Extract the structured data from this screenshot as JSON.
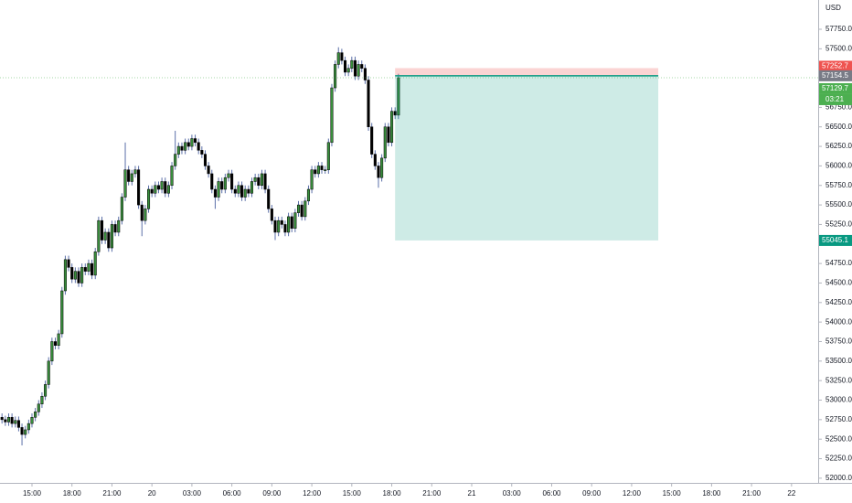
{
  "chart_data": {
    "type": "candlestick",
    "currency": "USD",
    "x": [
      -11.25,
      -11,
      -10.75,
      -10.5,
      -10.25,
      -10,
      -9.75,
      -9.5,
      -9.25,
      -9,
      -8.75,
      -8.5,
      -8.25,
      -8,
      -7.75,
      -7.5,
      -7.25,
      -7,
      -6.75,
      -6.5,
      -6.25,
      -6,
      -5.75,
      -5.5,
      -5.25,
      -5,
      -4.75,
      -4.5,
      -4.25,
      -4,
      -3.75,
      -3.5,
      -3.25,
      -3,
      -2.75,
      -2.5,
      -2.25,
      -2,
      -1.75,
      -1.5,
      -1.25,
      -1,
      -0.75,
      -0.5,
      -0.25,
      0,
      0.25,
      0.5,
      0.75,
      1,
      1.25,
      1.5,
      1.75,
      2,
      2.25,
      2.5,
      2.75,
      3,
      3.25,
      3.5,
      3.75,
      4,
      4.25,
      4.5,
      4.75,
      5,
      5.25,
      5.5,
      5.75,
      6,
      6.25,
      6.5,
      6.75,
      7,
      7.25,
      7.5,
      7.75,
      8,
      8.25,
      8.5,
      8.75,
      9,
      9.25,
      9.5,
      9.75,
      10,
      10.25,
      10.5,
      10.75,
      11,
      11.25,
      11.5,
      11.75,
      12,
      12.25,
      12.5,
      12.75,
      13,
      13.25,
      13.5,
      13.75,
      14,
      14.25,
      14.5,
      14.75,
      15,
      15.25,
      15.5,
      15.75,
      16,
      16.25,
      16.5,
      16.75,
      17,
      17.25,
      17.5,
      17.75,
      18,
      18.25,
      18.5
    ],
    "open": [
      52780,
      52750,
      52720,
      52780,
      52700,
      52740,
      52650,
      52560,
      52620,
      52700,
      52780,
      52850,
      52950,
      53050,
      53200,
      53500,
      53750,
      53700,
      53850,
      54400,
      54800,
      54700,
      54550,
      54650,
      54500,
      54700,
      54650,
      54750,
      54600,
      54900,
      55300,
      55050,
      55150,
      54950,
      55250,
      55150,
      55300,
      55600,
      55950,
      55800,
      55900,
      55950,
      55500,
      55300,
      55450,
      55700,
      55650,
      55750,
      55700,
      55800,
      55650,
      55750,
      56000,
      56150,
      56250,
      56200,
      56300,
      56250,
      56350,
      56300,
      56200,
      56150,
      56000,
      55900,
      55700,
      55600,
      55800,
      55700,
      55850,
      55900,
      55700,
      55650,
      55750,
      55600,
      55700,
      55650,
      55800,
      55850,
      55750,
      55900,
      55700,
      55450,
      55300,
      55150,
      55300,
      55250,
      55150,
      55350,
      55200,
      55400,
      55500,
      55350,
      55550,
      55700,
      55950,
      55900,
      56000,
      55950,
      55950,
      56300,
      57000,
      57300,
      57450,
      57350,
      57200,
      57250,
      57350,
      57150,
      57300,
      57250,
      57100,
      56500,
      56150,
      56000,
      55850,
      56100,
      56500,
      56300,
      56700,
      56650
    ],
    "high": [
      52830,
      52800,
      52830,
      52830,
      52790,
      52790,
      52700,
      52670,
      52750,
      52830,
      52900,
      53000,
      53100,
      53250,
      53550,
      53800,
      53800,
      53900,
      54450,
      54850,
      54850,
      54750,
      54700,
      54700,
      54750,
      54750,
      54800,
      54800,
      54950,
      55350,
      55350,
      55200,
      55200,
      55300,
      55300,
      55350,
      55650,
      56300,
      56000,
      55950,
      56000,
      56000,
      55550,
      55500,
      55750,
      55750,
      55800,
      55800,
      55850,
      55850,
      55800,
      56050,
      56450,
      56300,
      56300,
      56350,
      56350,
      56400,
      56400,
      56350,
      56250,
      56200,
      56050,
      55950,
      55750,
      55850,
      55850,
      55900,
      55950,
      55950,
      55750,
      55800,
      55800,
      55750,
      55750,
      55850,
      55900,
      55900,
      55950,
      55950,
      55750,
      55500,
      55350,
      55350,
      55350,
      55300,
      55400,
      55400,
      55450,
      55550,
      55550,
      55600,
      55750,
      56000,
      56000,
      56050,
      56050,
      56000,
      56350,
      57050,
      57350,
      57520,
      57500,
      57400,
      57300,
      57400,
      57400,
      57350,
      57350,
      57300,
      57150,
      56550,
      56200,
      56050,
      56150,
      56550,
      56550,
      56750,
      56750,
      57180
    ],
    "low": [
      52700,
      52670,
      52670,
      52650,
      52650,
      52600,
      52420,
      52510,
      52570,
      52650,
      52730,
      52800,
      52900,
      53000,
      53150,
      53450,
      53650,
      53650,
      53800,
      54350,
      54650,
      54500,
      54500,
      54450,
      54450,
      54600,
      54600,
      54550,
      54550,
      54850,
      55000,
      55000,
      54900,
      54900,
      55100,
      55100,
      55250,
      55550,
      55750,
      55750,
      55850,
      55450,
      55100,
      55250,
      55400,
      55600,
      55600,
      55650,
      55650,
      55600,
      55600,
      55700,
      55950,
      56100,
      56150,
      56150,
      56200,
      56200,
      56250,
      56150,
      56100,
      55950,
      55850,
      55650,
      55450,
      55550,
      55650,
      55650,
      55800,
      55650,
      55600,
      55600,
      55550,
      55550,
      55600,
      55600,
      55750,
      55700,
      55700,
      55650,
      55400,
      55250,
      55050,
      55100,
      55200,
      55100,
      55100,
      55150,
      55150,
      55350,
      55300,
      55300,
      55500,
      55650,
      55850,
      55850,
      55900,
      55900,
      55900,
      56250,
      56950,
      57250,
      57300,
      57150,
      57150,
      57200,
      57100,
      57100,
      57200,
      57050,
      56450,
      56100,
      55950,
      55720,
      55800,
      56050,
      56250,
      56250,
      56600,
      56600
    ],
    "close": [
      52750,
      52720,
      52780,
      52700,
      52740,
      52650,
      52560,
      52620,
      52700,
      52780,
      52850,
      52950,
      53050,
      53200,
      53500,
      53750,
      53700,
      53850,
      54400,
      54800,
      54700,
      54550,
      54650,
      54500,
      54700,
      54650,
      54750,
      54600,
      54900,
      55300,
      55050,
      55150,
      54950,
      55250,
      55150,
      55300,
      55600,
      55950,
      55800,
      55900,
      55950,
      55500,
      55300,
      55450,
      55700,
      55650,
      55750,
      55700,
      55800,
      55650,
      55750,
      56000,
      56150,
      56250,
      56200,
      56300,
      56250,
      56350,
      56300,
      56200,
      56150,
      56000,
      55900,
      55700,
      55600,
      55800,
      55700,
      55850,
      55900,
      55700,
      55650,
      55750,
      55600,
      55700,
      55650,
      55800,
      55850,
      55750,
      55900,
      55700,
      55450,
      55300,
      55150,
      55300,
      55250,
      55150,
      55350,
      55200,
      55400,
      55500,
      55350,
      55550,
      55700,
      55950,
      55900,
      56000,
      55950,
      55950,
      56300,
      57000,
      57300,
      57450,
      57350,
      57200,
      57250,
      57350,
      57150,
      57300,
      57250,
      57100,
      56500,
      56150,
      56000,
      55850,
      56100,
      56500,
      56300,
      56700,
      56650,
      57130
    ],
    "up_color": "#388e3c",
    "down_color": "#000000",
    "wick_color": "#5b6fa8",
    "xlim": [
      -11.4,
      50
    ],
    "ylim": [
      51940,
      58125
    ],
    "xticks": [
      {
        "value": -9,
        "label": "15:00"
      },
      {
        "value": -6,
        "label": "18:00"
      },
      {
        "value": -3,
        "label": "21:00"
      },
      {
        "value": 0,
        "label": "20"
      },
      {
        "value": 3,
        "label": "03:00"
      },
      {
        "value": 6,
        "label": "06:00"
      },
      {
        "value": 9,
        "label": "09:00"
      },
      {
        "value": 12,
        "label": "12:00"
      },
      {
        "value": 15,
        "label": "15:00"
      },
      {
        "value": 18,
        "label": "18:00"
      },
      {
        "value": 21,
        "label": "21:00"
      },
      {
        "value": 24,
        "label": "21"
      },
      {
        "value": 27,
        "label": "03:00"
      },
      {
        "value": 30,
        "label": "06:00"
      },
      {
        "value": 33,
        "label": "09:00"
      },
      {
        "value": 36,
        "label": "12:00"
      },
      {
        "value": 39,
        "label": "15:00"
      },
      {
        "value": 42,
        "label": "18:00"
      },
      {
        "value": 45,
        "label": "21:00"
      },
      {
        "value": 48,
        "label": "22"
      }
    ],
    "yticks": [
      {
        "value": 52000,
        "label": "52000.0"
      },
      {
        "value": 52250,
        "label": "52250.0"
      },
      {
        "value": 52500,
        "label": "52500.0"
      },
      {
        "value": 52750,
        "label": "52750.0"
      },
      {
        "value": 53000,
        "label": "53000.0"
      },
      {
        "value": 53250,
        "label": "53250.0"
      },
      {
        "value": 53500,
        "label": "53500.0"
      },
      {
        "value": 53750,
        "label": "53750.0"
      },
      {
        "value": 54000,
        "label": "54000.0"
      },
      {
        "value": 54250,
        "label": "54250.0"
      },
      {
        "value": 54500,
        "label": "54500.0"
      },
      {
        "value": 54750,
        "label": "54750.0"
      },
      {
        "value": 55250,
        "label": "55250.0"
      },
      {
        "value": 55500,
        "label": "55500.0"
      },
      {
        "value": 55750,
        "label": "55750.0"
      },
      {
        "value": 56000,
        "label": "56000.0"
      },
      {
        "value": 56250,
        "label": "56250.0"
      },
      {
        "value": 56500,
        "label": "56500.0"
      },
      {
        "value": 56750,
        "label": "56750.0"
      },
      {
        "value": 57500,
        "label": "57500.0"
      },
      {
        "value": 57750,
        "label": "57750.0"
      }
    ],
    "position": {
      "start": 18.25,
      "end": 38,
      "stop": 57252.7,
      "entry": 57154.5,
      "target": 55045.1,
      "stop_color": "#ef5350",
      "entry_color": "#787b86",
      "target_color": "#089981"
    },
    "last_price": 57129.7,
    "last_color": "#4caf50",
    "countdown": "03:21"
  }
}
